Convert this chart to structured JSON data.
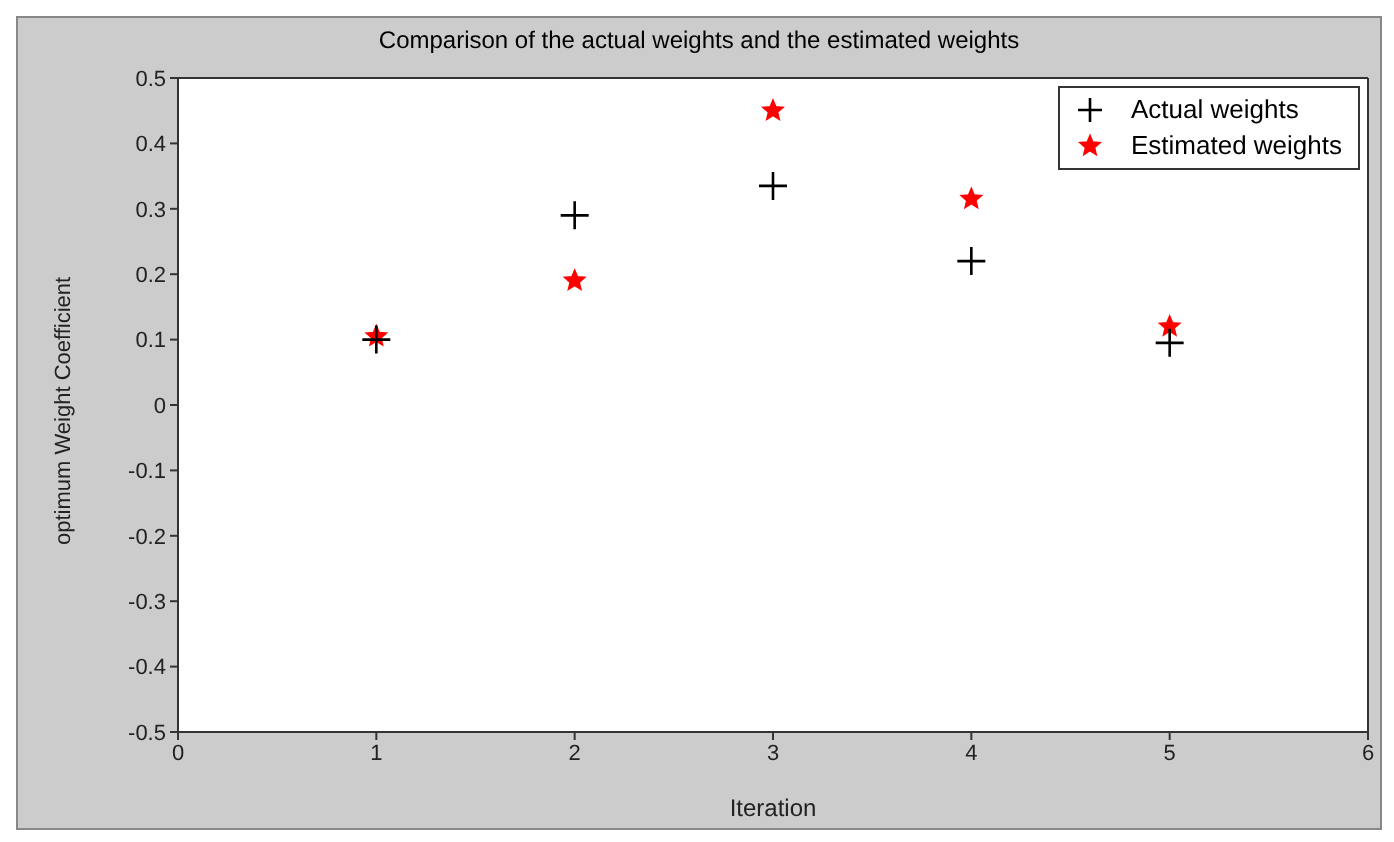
{
  "chart_data": {
    "type": "scatter",
    "title": "Comparison of the actual weights and the estimated weights",
    "xlabel": "Iteration",
    "ylabel": "optimum Weight Coefficient",
    "x": [
      1,
      2,
      3,
      4,
      5
    ],
    "series": [
      {
        "name": "Actual weights",
        "color": "#000000",
        "marker": "cross",
        "values": [
          0.1,
          0.29,
          0.335,
          0.22,
          0.095
        ]
      },
      {
        "name": "Estimated weights",
        "color": "#ff0000",
        "marker": "star",
        "values": [
          0.105,
          0.19,
          0.45,
          0.315,
          0.12
        ]
      }
    ],
    "xlim": [
      0,
      6
    ],
    "xticks": [
      0,
      1,
      2,
      3,
      4,
      5,
      6
    ],
    "ylim": [
      -0.5,
      0.5
    ],
    "yticks": [
      -0.5,
      -0.4,
      -0.3,
      -0.2,
      -0.1,
      0,
      0.1,
      0.2,
      0.3,
      0.4,
      0.5
    ],
    "grid": false,
    "legend": "top right"
  }
}
